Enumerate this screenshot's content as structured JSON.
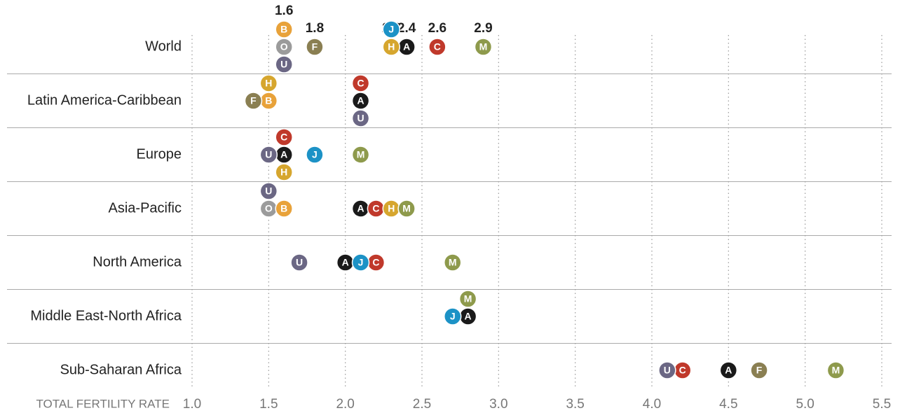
{
  "chart_data": {
    "type": "dot",
    "x_label": "TOTAL FERTILITY RATE",
    "categories": [
      "World",
      "Latin America-Caribbean",
      "Europe",
      "Asia-Pacific",
      "North America",
      "Middle East-North Africa",
      "Sub-Saharan Africa"
    ],
    "xlim": [
      1.0,
      5.5
    ],
    "xticks": [
      {
        "value": 1.0,
        "label": "1.0"
      },
      1.5,
      {
        "value": 2.0,
        "label": "2.0"
      },
      2.5,
      {
        "value": 3.0,
        "label": "3.0"
      },
      3.5,
      {
        "value": 4.0,
        "label": "4.0"
      },
      4.5,
      {
        "value": 5.0,
        "label": "5.0"
      },
      5.5
    ],
    "grid": true,
    "series": [
      {
        "name": "A",
        "color": "#1a1a1a",
        "values": [
          2.4,
          2.1,
          1.6,
          2.1,
          2.0,
          2.8,
          4.5
        ],
        "value_labels": [
          "2.4",
          null,
          null,
          null,
          null,
          null,
          null
        ]
      },
      {
        "name": "C",
        "color": "#c0392b",
        "values": [
          2.6,
          2.1,
          1.6,
          2.2,
          2.2,
          null,
          4.2
        ],
        "value_labels": [
          "2.6",
          null,
          null,
          null,
          null,
          null,
          null
        ]
      },
      {
        "name": "O",
        "color": "#9b9b9b",
        "values": [
          1.6,
          null,
          null,
          1.5,
          null,
          null,
          null
        ]
      },
      {
        "name": "B",
        "color": "#e8a23a",
        "values": [
          1.6,
          1.5,
          null,
          1.6,
          null,
          null,
          null
        ],
        "value_labels": [
          "1.6",
          null,
          null,
          null,
          null,
          null,
          null
        ]
      },
      {
        "name": "U",
        "color": "#6b6784",
        "values": [
          1.6,
          2.1,
          1.5,
          1.5,
          1.7,
          null,
          4.1
        ]
      },
      {
        "name": "F",
        "color": "#8a7f52",
        "values": [
          1.8,
          1.4,
          null,
          null,
          null,
          null,
          4.7
        ],
        "value_labels": [
          "1.8",
          null,
          null,
          null,
          null,
          null,
          null
        ]
      },
      {
        "name": "H",
        "color": "#d6a62e",
        "values": [
          2.3,
          1.5,
          1.6,
          2.3,
          null,
          null,
          null
        ],
        "value_labels": [
          "2.3",
          null,
          null,
          null,
          null,
          null,
          null
        ]
      },
      {
        "name": "J",
        "color": "#1c92c6",
        "values": [
          2.3,
          null,
          1.8,
          null,
          2.1,
          2.7,
          null
        ]
      },
      {
        "name": "M",
        "color": "#8e9a4c",
        "values": [
          2.9,
          null,
          2.1,
          2.4,
          2.7,
          2.8,
          5.2
        ],
        "value_labels": [
          "2.9",
          null,
          null,
          null,
          null,
          null,
          null
        ]
      }
    ]
  }
}
